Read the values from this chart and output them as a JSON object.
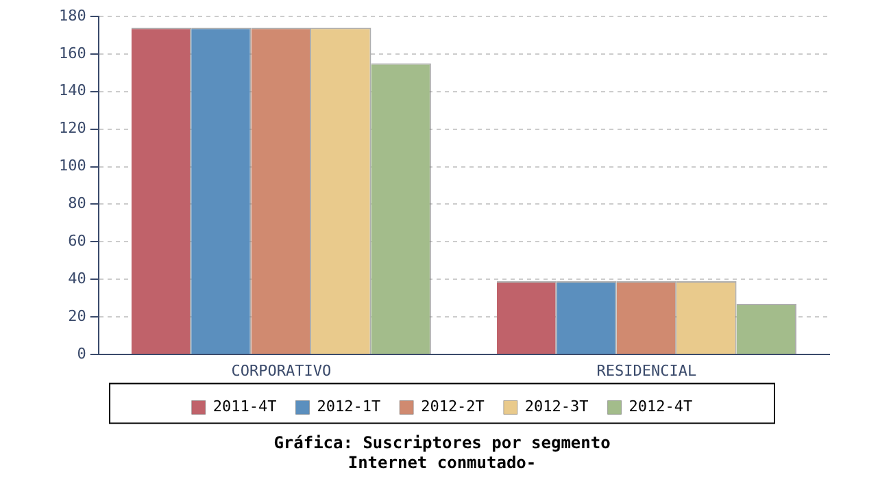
{
  "chart_data": {
    "type": "bar",
    "title": "Gráfica: Suscriptores por segmento",
    "subtitle": "Internet conmutado-",
    "categories": [
      "CORPORATIVO",
      "RESIDENCIAL"
    ],
    "series": [
      {
        "name": "2011-4T",
        "color": "#c0626a",
        "values": [
          174,
          39
        ]
      },
      {
        "name": "2012-1T",
        "color": "#5b8fbe",
        "values": [
          174,
          39
        ]
      },
      {
        "name": "2012-2T",
        "color": "#d08a70",
        "values": [
          174,
          39
        ]
      },
      {
        "name": "2012-3T",
        "color": "#e9ca8c",
        "values": [
          174,
          39
        ]
      },
      {
        "name": "2012-4T",
        "color": "#a3bc8b",
        "values": [
          155,
          27
        ]
      }
    ],
    "ylim": [
      0,
      180
    ],
    "yticks": [
      0,
      20,
      40,
      60,
      80,
      100,
      120,
      140,
      160,
      180
    ],
    "grid": "y",
    "legend": "bottom"
  }
}
